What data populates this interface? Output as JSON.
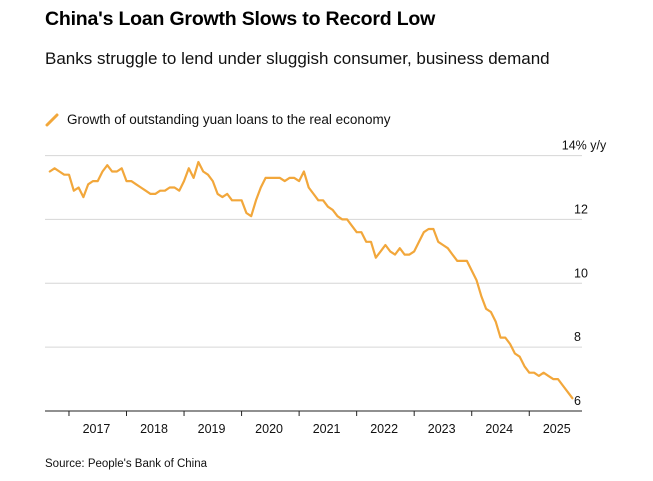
{
  "chart_data": {
    "type": "line",
    "title": "China's Loan Growth Slows to Record Low",
    "subtitle": "Banks struggle to lend under sluggish consumer, business demand",
    "series": [
      {
        "name": "Growth of outstanding yuan loans to the real economy",
        "color": "#f2a73b",
        "x": [
          "2016-09",
          "2016-10",
          "2016-11",
          "2016-12",
          "2017-01",
          "2017-02",
          "2017-03",
          "2017-04",
          "2017-05",
          "2017-06",
          "2017-07",
          "2017-08",
          "2017-09",
          "2017-10",
          "2017-11",
          "2017-12",
          "2018-01",
          "2018-02",
          "2018-03",
          "2018-04",
          "2018-05",
          "2018-06",
          "2018-07",
          "2018-08",
          "2018-09",
          "2018-10",
          "2018-11",
          "2018-12",
          "2019-01",
          "2019-02",
          "2019-03",
          "2019-04",
          "2019-05",
          "2019-06",
          "2019-07",
          "2019-08",
          "2019-09",
          "2019-10",
          "2019-11",
          "2019-12",
          "2020-01",
          "2020-02",
          "2020-03",
          "2020-04",
          "2020-05",
          "2020-06",
          "2020-07",
          "2020-08",
          "2020-09",
          "2020-10",
          "2020-11",
          "2020-12",
          "2021-01",
          "2021-02",
          "2021-03",
          "2021-04",
          "2021-05",
          "2021-06",
          "2021-07",
          "2021-08",
          "2021-09",
          "2021-10",
          "2021-11",
          "2021-12",
          "2022-01",
          "2022-02",
          "2022-03",
          "2022-04",
          "2022-05",
          "2022-06",
          "2022-07",
          "2022-08",
          "2022-09",
          "2022-10",
          "2022-11",
          "2022-12",
          "2023-01",
          "2023-02",
          "2023-03",
          "2023-04",
          "2023-05",
          "2023-06",
          "2023-07",
          "2023-08",
          "2023-09",
          "2023-10",
          "2023-11",
          "2023-12",
          "2024-01",
          "2024-02",
          "2024-03",
          "2024-04",
          "2024-05",
          "2024-06",
          "2024-07",
          "2024-08",
          "2024-09",
          "2024-10",
          "2024-11",
          "2024-12",
          "2025-01",
          "2025-02",
          "2025-03",
          "2025-04",
          "2025-05",
          "2025-06",
          "2025-07",
          "2025-08",
          "2025-09",
          "2025-10"
        ],
        "values": [
          13.5,
          13.6,
          13.5,
          13.4,
          13.4,
          12.9,
          13.0,
          12.7,
          13.1,
          13.2,
          13.2,
          13.5,
          13.7,
          13.5,
          13.5,
          13.6,
          13.2,
          13.2,
          13.1,
          13.0,
          12.9,
          12.8,
          12.8,
          12.9,
          12.9,
          13.0,
          13.0,
          12.9,
          13.2,
          13.6,
          13.3,
          13.8,
          13.5,
          13.4,
          13.2,
          12.8,
          12.7,
          12.8,
          12.6,
          12.6,
          12.6,
          12.2,
          12.1,
          12.6,
          13.0,
          13.3,
          13.3,
          13.3,
          13.3,
          13.2,
          13.3,
          13.3,
          13.2,
          13.5,
          13.0,
          12.8,
          12.6,
          12.6,
          12.4,
          12.3,
          12.1,
          12.0,
          12.0,
          11.8,
          11.6,
          11.6,
          11.3,
          11.3,
          10.8,
          11.0,
          11.2,
          11.0,
          10.9,
          11.1,
          10.9,
          10.9,
          11.0,
          11.3,
          11.6,
          11.7,
          11.7,
          11.3,
          11.2,
          11.1,
          10.9,
          10.7,
          10.7,
          10.7,
          10.4,
          10.1,
          9.6,
          9.2,
          9.1,
          8.8,
          8.3,
          8.3,
          8.1,
          7.8,
          7.7,
          7.4,
          7.2,
          7.2,
          7.1,
          7.2,
          7.1,
          7.0,
          7.0,
          6.8,
          6.6,
          6.4
        ]
      }
    ],
    "y_ticks": [
      6,
      8,
      10,
      12,
      14
    ],
    "y_tick_labels": [
      "6",
      "8",
      "10",
      "12",
      "14% y/y"
    ],
    "ylim": [
      6,
      14.3
    ],
    "x_ticks": [
      "2017",
      "2018",
      "2019",
      "2020",
      "2021",
      "2022",
      "2023",
      "2024",
      "2025"
    ],
    "x_range": [
      "2016-08",
      "2025-12"
    ],
    "grid": "horizontal",
    "legend_position": "top-left",
    "source": "Source: People's Bank of China"
  }
}
